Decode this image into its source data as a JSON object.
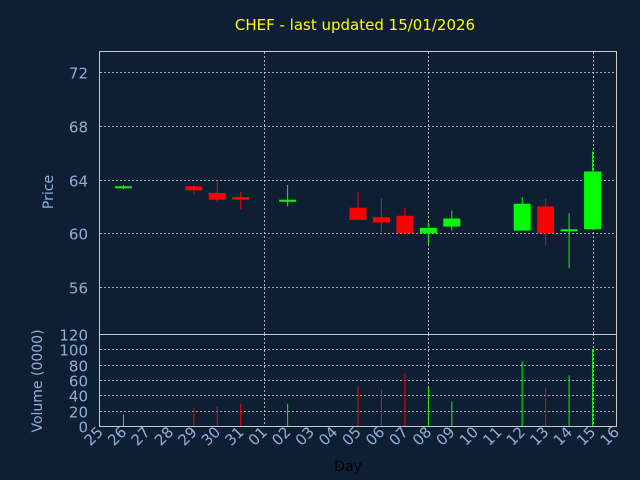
{
  "chart_data": {
    "title": "CHEF - last updated 15/01/2026",
    "type": "candlestick",
    "xlabel": "Day",
    "price": {
      "ylabel": "Price",
      "ylim": [
        52.5,
        73.5
      ],
      "yticks": [
        56,
        60,
        64,
        68,
        72
      ]
    },
    "volume": {
      "ylabel": "Volume (0000)",
      "ylim": [
        0,
        120
      ],
      "yticks": [
        0,
        20,
        40,
        60,
        80,
        100,
        120
      ]
    },
    "x_tick_labels": [
      "25",
      "26",
      "27",
      "28",
      "29",
      "30",
      "31",
      "01",
      "02",
      "03",
      "04",
      "05",
      "06",
      "07",
      "08",
      "09",
      "10",
      "11",
      "12",
      "13",
      "14",
      "15",
      "16"
    ],
    "grid": true,
    "colors": {
      "up": "#00ff00",
      "down": "#ff0000",
      "neutral": "#00ff00"
    },
    "candles": [
      {
        "x": 1.0,
        "open": 63.5,
        "close": 63.4,
        "high": 63.6,
        "low": 63.3,
        "volume": 15,
        "dir": "up"
      },
      {
        "x": 4.0,
        "open": 63.5,
        "close": 63.2,
        "high": 63.6,
        "low": 62.9,
        "volume": 24,
        "dir": "down"
      },
      {
        "x": 5.0,
        "open": 63.0,
        "close": 62.5,
        "high": 63.9,
        "low": 62.3,
        "volume": 26,
        "dir": "down"
      },
      {
        "x": 6.0,
        "open": 62.7,
        "close": 62.5,
        "high": 63.1,
        "low": 61.8,
        "volume": 29,
        "dir": "down"
      },
      {
        "x": 8.0,
        "open": 62.4,
        "close": 62.5,
        "high": 63.6,
        "low": 62.0,
        "volume": 29,
        "dir": "up"
      },
      {
        "x": 11.0,
        "open": 61.9,
        "close": 61.0,
        "high": 63.1,
        "low": 61.0,
        "volume": 52,
        "dir": "down"
      },
      {
        "x": 12.0,
        "open": 61.2,
        "close": 60.8,
        "high": 62.6,
        "low": 59.8,
        "volume": 48,
        "dir": "down"
      },
      {
        "x": 13.0,
        "open": 61.3,
        "close": 60.0,
        "high": 61.9,
        "low": 60.0,
        "volume": 69,
        "dir": "down"
      },
      {
        "x": 14.0,
        "open": 60.0,
        "close": 60.4,
        "high": 60.8,
        "low": 59.2,
        "volume": 50,
        "dir": "up"
      },
      {
        "x": 15.0,
        "open": 60.5,
        "close": 61.1,
        "high": 61.7,
        "low": 60.2,
        "volume": 32,
        "dir": "up"
      },
      {
        "x": 18.0,
        "open": 60.2,
        "close": 62.2,
        "high": 62.7,
        "low": 60.2,
        "volume": 84,
        "dir": "up"
      },
      {
        "x": 19.0,
        "open": 62.0,
        "close": 60.0,
        "high": 62.6,
        "low": 59.1,
        "volume": 49,
        "dir": "down"
      },
      {
        "x": 20.0,
        "open": 60.3,
        "close": 60.2,
        "high": 61.5,
        "low": 57.4,
        "volume": 66,
        "dir": "up"
      },
      {
        "x": 21.0,
        "open": 60.3,
        "close": 64.6,
        "high": 66.1,
        "low": 60.3,
        "volume": 100,
        "dir": "up"
      }
    ]
  }
}
